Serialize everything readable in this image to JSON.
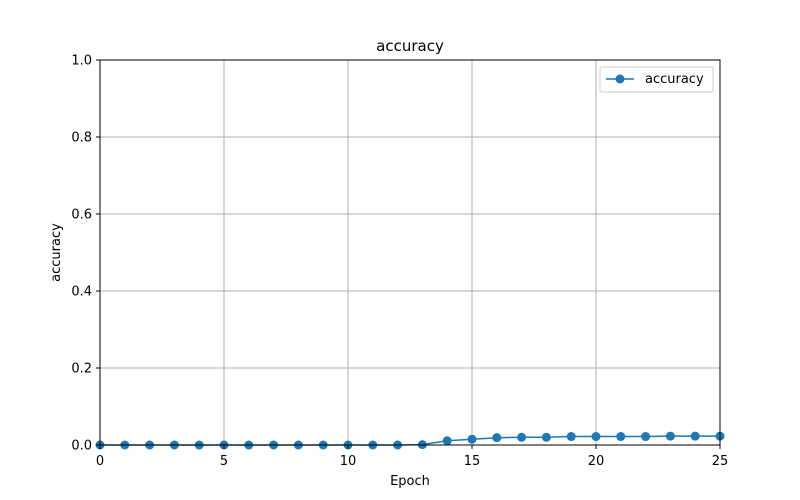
{
  "chart_data": {
    "type": "line",
    "title": "accuracy",
    "xlabel": "Epoch",
    "ylabel": "accuracy",
    "xlim": [
      0,
      25
    ],
    "ylim": [
      0,
      1.0
    ],
    "x_ticks": [
      "0",
      "5",
      "10",
      "15",
      "20",
      "25"
    ],
    "y_ticks": [
      "0.0",
      "0.2",
      "0.4",
      "0.6",
      "0.8",
      "1.0"
    ],
    "grid": true,
    "legend_position": "top-right",
    "series": [
      {
        "name": "accuracy",
        "color": "#1f77b4",
        "marker": "circle",
        "x": [
          0,
          1,
          2,
          3,
          4,
          5,
          6,
          7,
          8,
          9,
          10,
          11,
          12,
          13,
          14,
          15,
          16,
          17,
          18,
          19,
          20,
          21,
          22,
          23,
          24,
          25
        ],
        "y": [
          0,
          0,
          0,
          0,
          0,
          0,
          0,
          0,
          0,
          0,
          0,
          0,
          0,
          0.001,
          0.011,
          0.015,
          0.019,
          0.02,
          0.02,
          0.022,
          0.022,
          0.022,
          0.022,
          0.023,
          0.023,
          0.023
        ]
      }
    ]
  }
}
